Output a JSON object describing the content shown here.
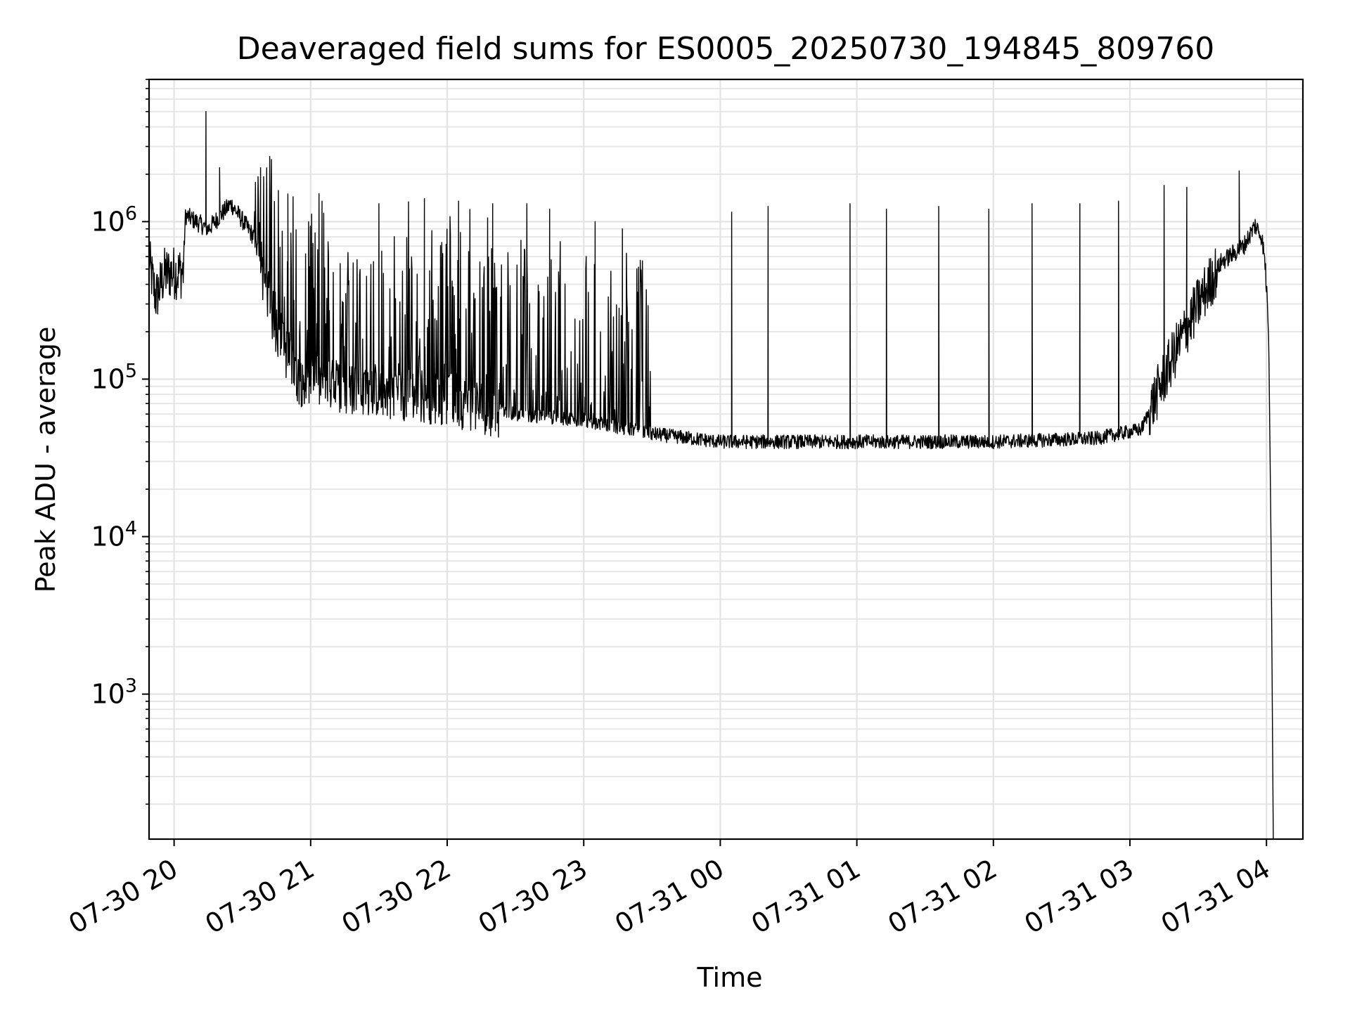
{
  "chart_data": {
    "type": "line",
    "title": "Deaveraged field sums for ES0005_20250730_194845_809760",
    "xlabel": "Time",
    "ylabel": "Peak ADU - average",
    "yscale": "log",
    "xlim": [
      "2025-07-30 19:49",
      "2025-07-31 04:16"
    ],
    "ylim": [
      120,
      8000000
    ],
    "grid": {
      "major": true,
      "minor": true
    },
    "x_ticks": [
      {
        "t": "2025-07-30 20:00",
        "label": "07-30 20"
      },
      {
        "t": "2025-07-30 21:00",
        "label": "07-30 21"
      },
      {
        "t": "2025-07-30 22:00",
        "label": "07-30 22"
      },
      {
        "t": "2025-07-30 23:00",
        "label": "07-30 23"
      },
      {
        "t": "2025-07-31 00:00",
        "label": "07-31 00"
      },
      {
        "t": "2025-07-31 01:00",
        "label": "07-31 01"
      },
      {
        "t": "2025-07-31 02:00",
        "label": "07-31 02"
      },
      {
        "t": "2025-07-31 03:00",
        "label": "07-31 03"
      },
      {
        "t": "2025-07-31 04:00",
        "label": "07-31 04"
      }
    ],
    "y_ticks": [
      {
        "value": 1000,
        "base": "10",
        "exp": "3"
      },
      {
        "value": 10000,
        "base": "10",
        "exp": "4"
      },
      {
        "value": 100000,
        "base": "10",
        "exp": "5"
      },
      {
        "value": 1000000,
        "base": "10",
        "exp": "6"
      }
    ],
    "series": [
      {
        "color": "#000000",
        "baseline": [
          [
            "2025-07-30 19:49",
            550000
          ],
          [
            "2025-07-30 19:52",
            330000
          ],
          [
            "2025-07-30 19:56",
            470000
          ],
          [
            "2025-07-30 20:04",
            480000
          ],
          [
            "2025-07-30 20:05",
            1100000
          ],
          [
            "2025-07-30 20:15",
            900000
          ],
          [
            "2025-07-30 20:25",
            1300000
          ],
          [
            "2025-07-30 20:35",
            800000
          ],
          [
            "2025-07-30 20:45",
            200000
          ],
          [
            "2025-07-30 20:55",
            100000
          ],
          [
            "2025-07-30 21:10",
            90000
          ],
          [
            "2025-07-30 21:30",
            85000
          ],
          [
            "2025-07-30 22:00",
            75000
          ],
          [
            "2025-07-30 22:30",
            60000
          ],
          [
            "2025-07-30 23:00",
            55000
          ],
          [
            "2025-07-30 23:30",
            45000
          ],
          [
            "2025-07-31 00:00",
            40000
          ],
          [
            "2025-07-31 01:00",
            40000
          ],
          [
            "2025-07-31 02:00",
            40000
          ],
          [
            "2025-07-31 02:45",
            42000
          ],
          [
            "2025-07-31 03:05",
            48000
          ],
          [
            "2025-07-31 03:10",
            70000
          ],
          [
            "2025-07-31 03:20",
            150000
          ],
          [
            "2025-07-31 03:30",
            300000
          ],
          [
            "2025-07-31 03:40",
            550000
          ],
          [
            "2025-07-31 03:50",
            700000
          ],
          [
            "2025-07-31 03:55",
            950000
          ],
          [
            "2025-07-31 03:58",
            800000
          ],
          [
            "2025-07-31 04:00",
            450000
          ],
          [
            "2025-07-31 04:01",
            170000
          ],
          [
            "2025-07-31 04:02",
            10000
          ],
          [
            "2025-07-31 04:03",
            120
          ]
        ],
        "spikes": [
          [
            "2025-07-30 20:14",
            5000000
          ],
          [
            "2025-07-30 20:20",
            2200000
          ],
          [
            "2025-07-30 20:38",
            2200000
          ],
          [
            "2025-07-30 20:50",
            1500000
          ],
          [
            "2025-07-30 21:05",
            1350000
          ],
          [
            "2025-07-30 21:30",
            1300000
          ],
          [
            "2025-07-30 21:50",
            1400000
          ],
          [
            "2025-07-30 22:05",
            1350000
          ],
          [
            "2025-07-30 22:20",
            1300000
          ],
          [
            "2025-07-30 22:35",
            1300000
          ],
          [
            "2025-07-30 22:45",
            1200000
          ],
          [
            "2025-07-30 23:05",
            1000000
          ],
          [
            "2025-07-30 23:17",
            900000
          ],
          [
            "2025-07-31 00:05",
            1150000
          ],
          [
            "2025-07-31 00:21",
            1250000
          ],
          [
            "2025-07-31 00:57",
            1300000
          ],
          [
            "2025-07-31 01:13",
            1200000
          ],
          [
            "2025-07-31 01:36",
            1250000
          ],
          [
            "2025-07-31 01:58",
            1200000
          ],
          [
            "2025-07-31 02:17",
            1300000
          ],
          [
            "2025-07-31 02:38",
            1300000
          ],
          [
            "2025-07-31 02:55",
            1350000
          ],
          [
            "2025-07-31 03:15",
            1700000
          ],
          [
            "2025-07-31 03:25",
            1650000
          ],
          [
            "2025-07-31 03:48",
            2100000
          ]
        ]
      }
    ]
  }
}
